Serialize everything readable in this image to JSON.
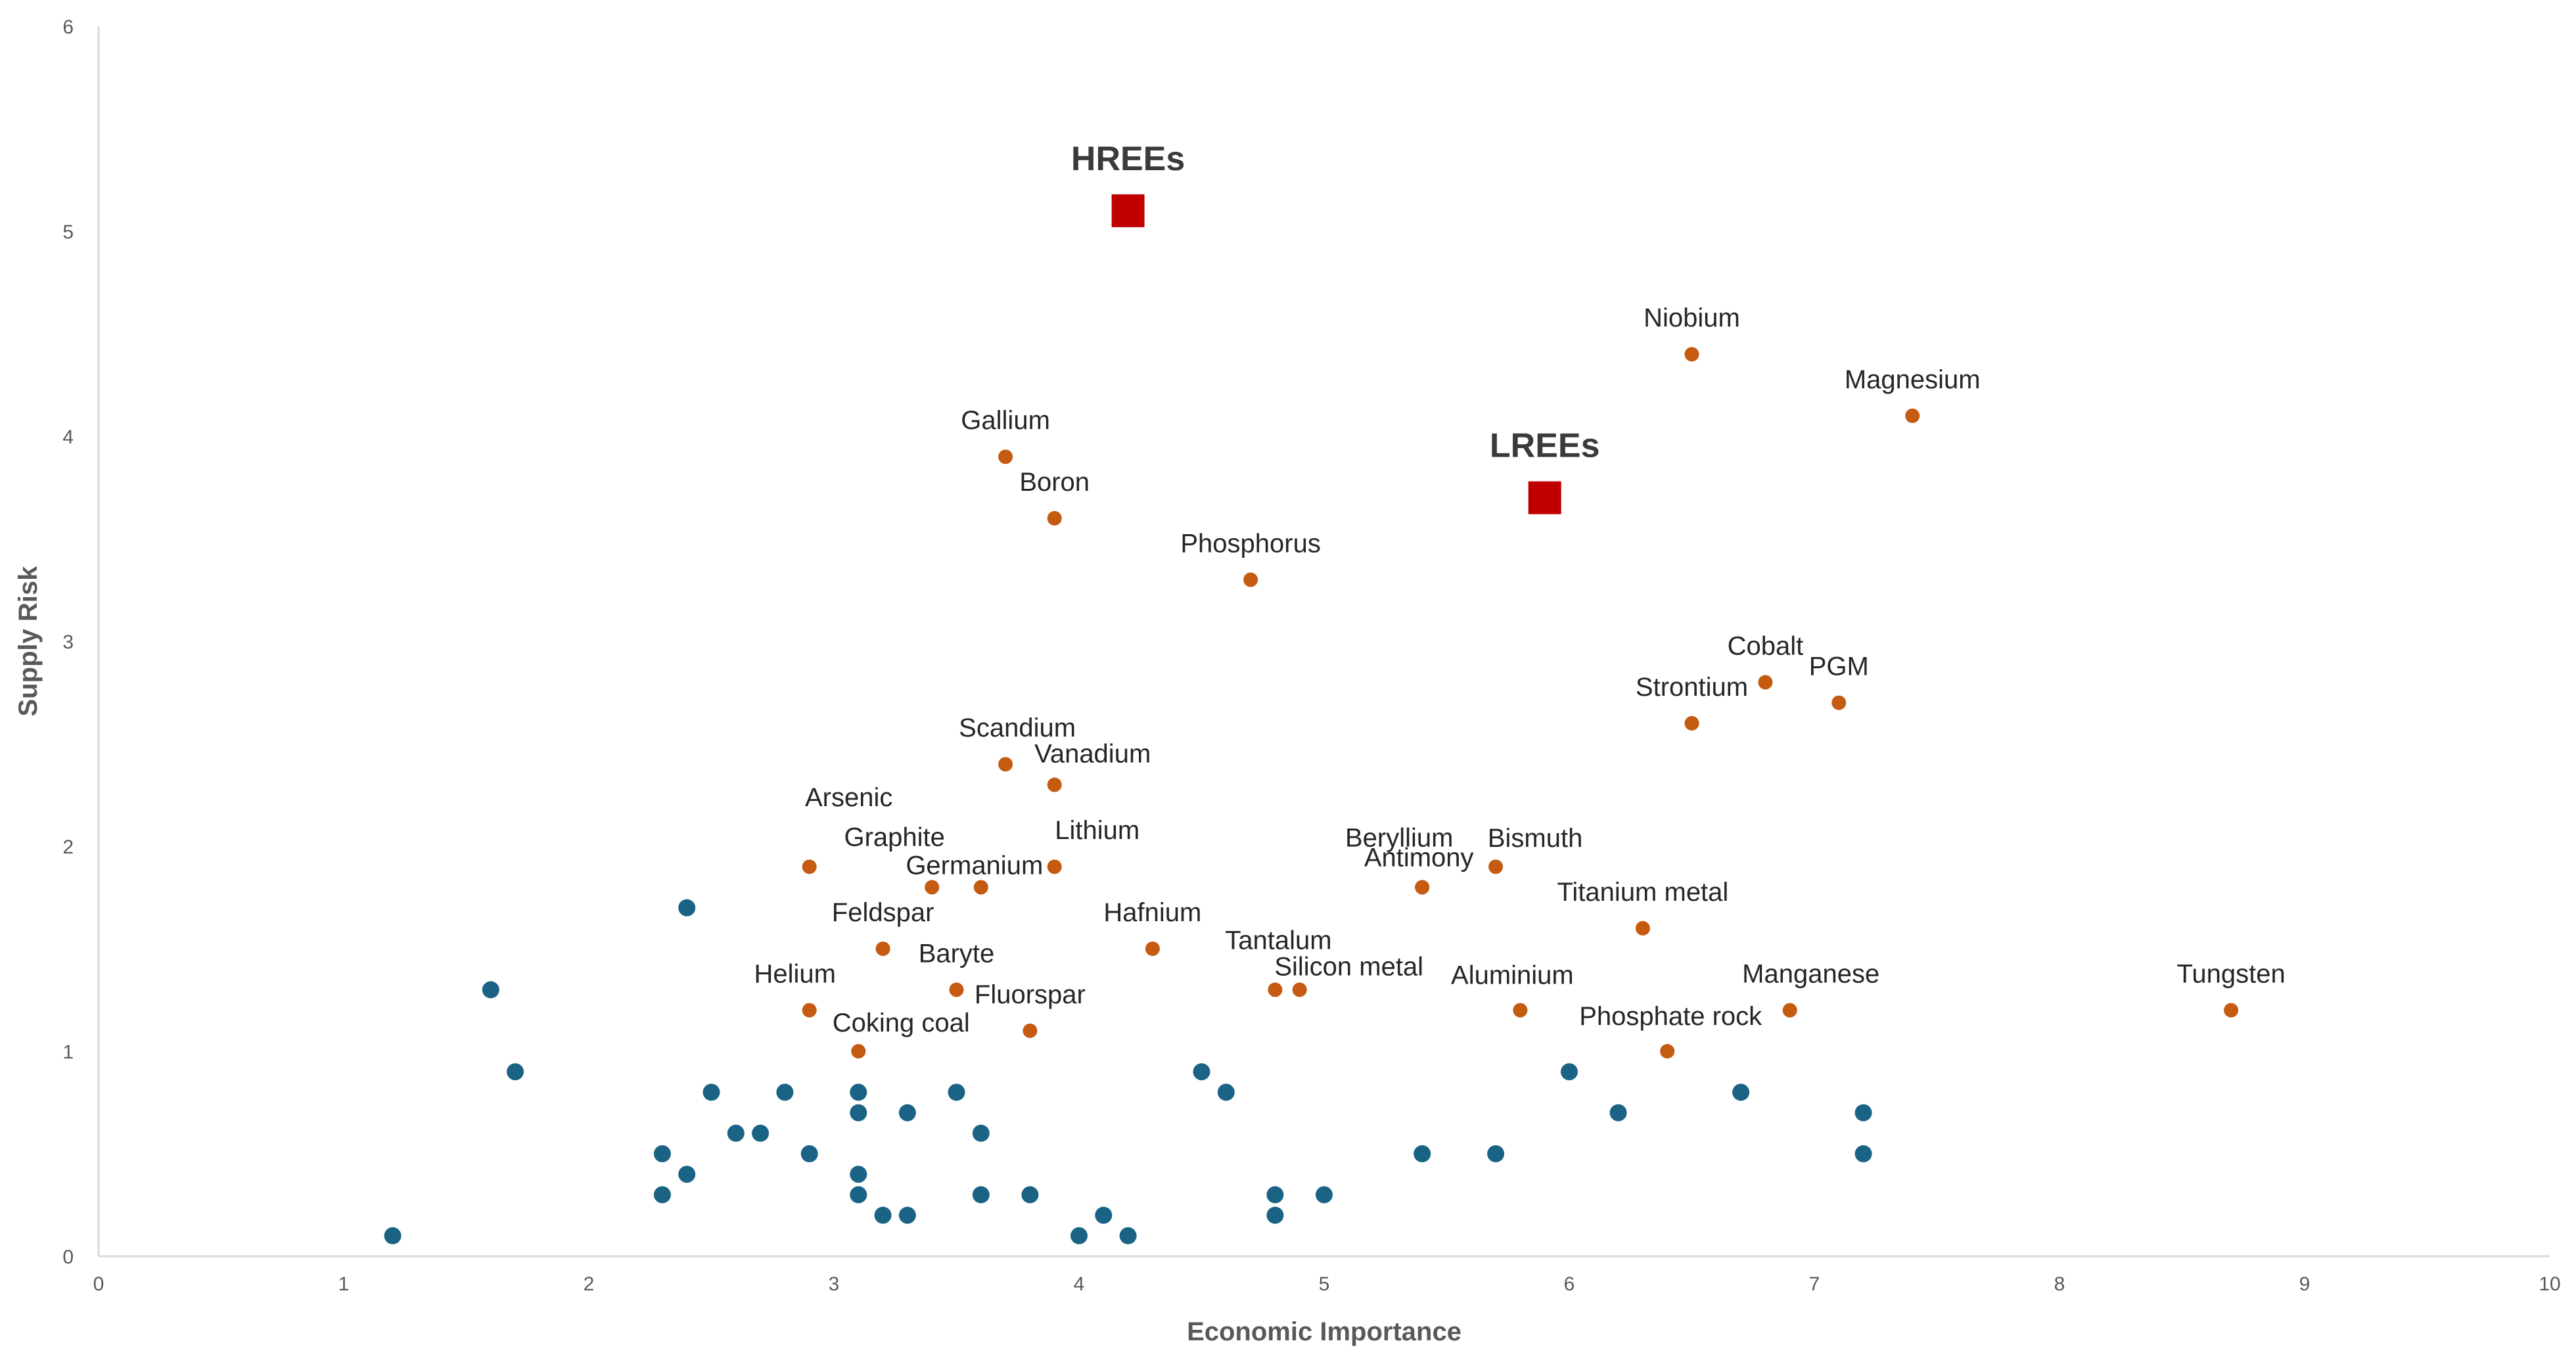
{
  "chart_data": {
    "type": "scatter",
    "title": "",
    "xlabel": "Economic Importance",
    "ylabel": "Supply Risk",
    "xlim": [
      0,
      10
    ],
    "ylim": [
      0,
      6
    ],
    "x_ticks": [
      "0",
      "1",
      "2",
      "3",
      "4",
      "5",
      "6",
      "7",
      "8",
      "9",
      "10"
    ],
    "y_ticks": [
      "0",
      "1",
      "2",
      "3",
      "4",
      "5",
      "6"
    ],
    "grid": false,
    "colors": {
      "critical": "#c55a11",
      "non_critical": "#1a6385",
      "rees": "#c00000",
      "axis": "#d9d9d9"
    },
    "rees": [
      {
        "label": "HREEs",
        "x": 4.2,
        "y": 5.1
      },
      {
        "label": "LREEs",
        "x": 5.9,
        "y": 3.7
      }
    ],
    "critical": [
      {
        "label": "Niobium",
        "x": 6.5,
        "y": 4.4
      },
      {
        "label": "Magnesium",
        "x": 7.4,
        "y": 4.1
      },
      {
        "label": "Gallium",
        "x": 3.7,
        "y": 3.9
      },
      {
        "label": "Boron",
        "x": 3.9,
        "y": 3.6
      },
      {
        "label": "Phosphorus",
        "x": 4.7,
        "y": 3.3
      },
      {
        "label": "Cobalt",
        "x": 6.8,
        "y": 2.8
      },
      {
        "label": "PGM",
        "x": 7.1,
        "y": 2.7
      },
      {
        "label": "Strontium",
        "x": 6.5,
        "y": 2.6
      },
      {
        "label": "Scandium",
        "x": 3.7,
        "y": 2.4
      },
      {
        "label": "Vanadium",
        "x": 3.9,
        "y": 2.3
      },
      {
        "label": "Arsenic",
        "x": 2.9,
        "y": 1.9
      },
      {
        "label": "Graphite",
        "x": 3.4,
        "y": 1.8
      },
      {
        "label": "Germanium",
        "x": 3.6,
        "y": 1.8
      },
      {
        "label": "Lithium",
        "x": 3.9,
        "y": 1.9
      },
      {
        "label": "Beryllium",
        "x": 5.4,
        "y": 1.8
      },
      {
        "label": "Bismuth",
        "x": 5.7,
        "y": 1.9
      },
      {
        "label": "Antimony",
        "x": 5.4,
        "y": 1.8
      },
      {
        "label": "Titanium metal",
        "x": 6.3,
        "y": 1.6
      },
      {
        "label": "Feldspar",
        "x": 3.2,
        "y": 1.5
      },
      {
        "label": "Hafnium",
        "x": 4.3,
        "y": 1.5
      },
      {
        "label": "Tantalum",
        "x": 4.8,
        "y": 1.3
      },
      {
        "label": "Silicon metal",
        "x": 4.9,
        "y": 1.3
      },
      {
        "label": "Baryte",
        "x": 3.5,
        "y": 1.3
      },
      {
        "label": "Helium",
        "x": 2.9,
        "y": 1.2
      },
      {
        "label": "Fluorspar",
        "x": 3.8,
        "y": 1.1
      },
      {
        "label": "Coking coal",
        "x": 3.1,
        "y": 1.0
      },
      {
        "label": "Aluminium",
        "x": 5.8,
        "y": 1.2
      },
      {
        "label": "Manganese",
        "x": 6.9,
        "y": 1.2
      },
      {
        "label": "Phosphate rock",
        "x": 6.4,
        "y": 1.0
      },
      {
        "label": "Tungsten",
        "x": 8.7,
        "y": 1.2
      }
    ],
    "non_critical": [
      {
        "x": 1.2,
        "y": 0.1
      },
      {
        "x": 1.6,
        "y": 1.3
      },
      {
        "x": 1.7,
        "y": 0.9
      },
      {
        "x": 2.3,
        "y": 0.5
      },
      {
        "x": 2.3,
        "y": 0.3
      },
      {
        "x": 2.4,
        "y": 0.4
      },
      {
        "x": 2.4,
        "y": 1.7
      },
      {
        "x": 2.5,
        "y": 0.8
      },
      {
        "x": 2.6,
        "y": 0.6
      },
      {
        "x": 2.7,
        "y": 0.6
      },
      {
        "x": 2.8,
        "y": 0.8
      },
      {
        "x": 2.9,
        "y": 0.5
      },
      {
        "x": 3.1,
        "y": 0.8
      },
      {
        "x": 3.1,
        "y": 0.7
      },
      {
        "x": 3.1,
        "y": 0.4
      },
      {
        "x": 3.1,
        "y": 0.3
      },
      {
        "x": 3.2,
        "y": 0.2
      },
      {
        "x": 3.3,
        "y": 0.7
      },
      {
        "x": 3.3,
        "y": 0.2
      },
      {
        "x": 3.5,
        "y": 0.8
      },
      {
        "x": 3.6,
        "y": 0.6
      },
      {
        "x": 3.6,
        "y": 0.3
      },
      {
        "x": 3.8,
        "y": 0.3
      },
      {
        "x": 4.0,
        "y": 0.1
      },
      {
        "x": 4.1,
        "y": 0.2
      },
      {
        "x": 4.2,
        "y": 0.1
      },
      {
        "x": 4.5,
        "y": 0.9
      },
      {
        "x": 4.6,
        "y": 0.8
      },
      {
        "x": 4.8,
        "y": 0.3
      },
      {
        "x": 4.8,
        "y": 0.2
      },
      {
        "x": 5.0,
        "y": 0.3
      },
      {
        "x": 5.4,
        "y": 0.5
      },
      {
        "x": 5.7,
        "y": 0.5
      },
      {
        "x": 6.0,
        "y": 0.9
      },
      {
        "x": 6.2,
        "y": 0.7
      },
      {
        "x": 6.7,
        "y": 0.8
      },
      {
        "x": 7.2,
        "y": 0.7
      },
      {
        "x": 7.2,
        "y": 0.5
      }
    ]
  }
}
